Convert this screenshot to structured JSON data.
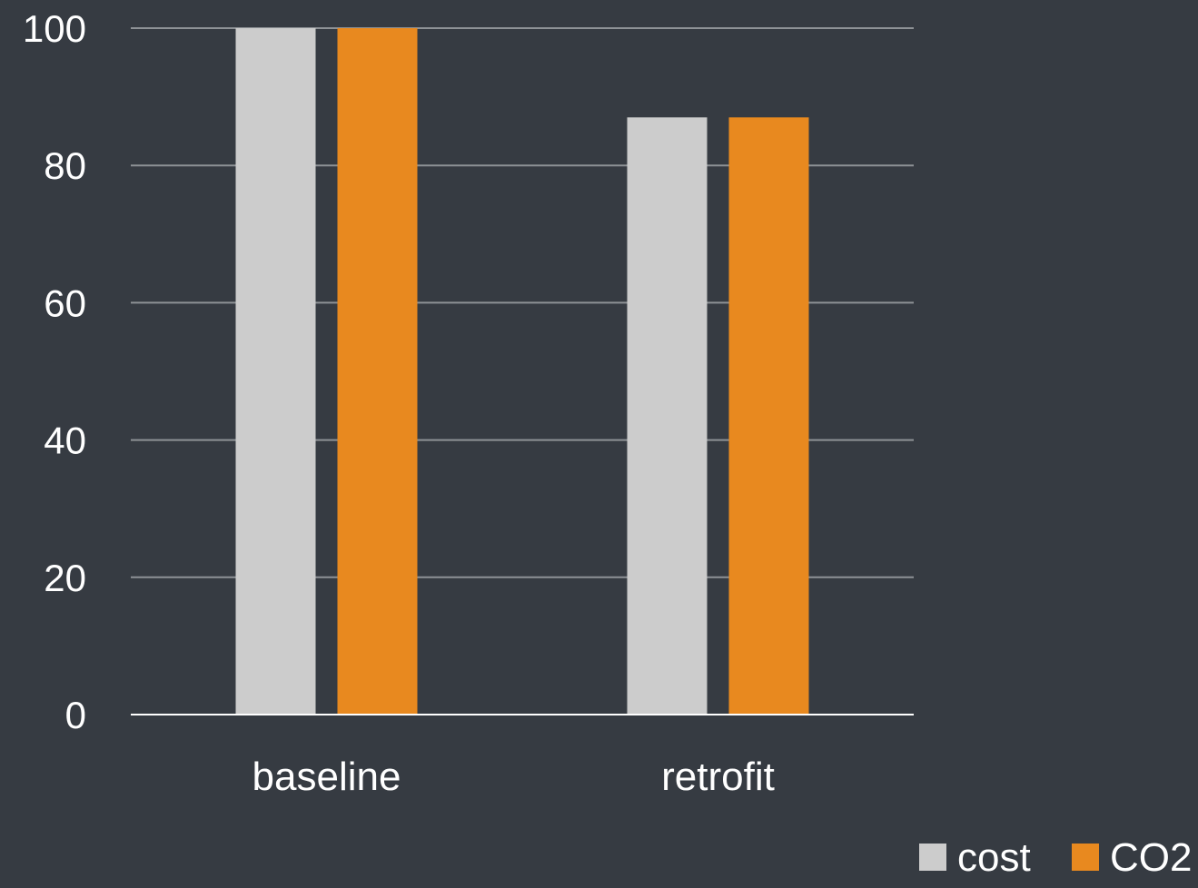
{
  "chart_data": {
    "type": "bar",
    "categories": [
      "baseline",
      "retrofit"
    ],
    "series": [
      {
        "name": "cost",
        "values": [
          100,
          87
        ],
        "color": "#cccccc"
      },
      {
        "name": "CO2",
        "values": [
          100,
          87
        ],
        "color": "#e8891f"
      }
    ],
    "ylim": [
      0,
      100
    ],
    "yticks": [
      0,
      20,
      40,
      60,
      80,
      100
    ],
    "grid": true,
    "legend": "bottom-right",
    "title": "",
    "xlabel": "",
    "ylabel": ""
  },
  "colors": {
    "background": "#363b42",
    "gridline": "#8e9296",
    "axis": "#ffffff",
    "text": "#ffffff"
  }
}
